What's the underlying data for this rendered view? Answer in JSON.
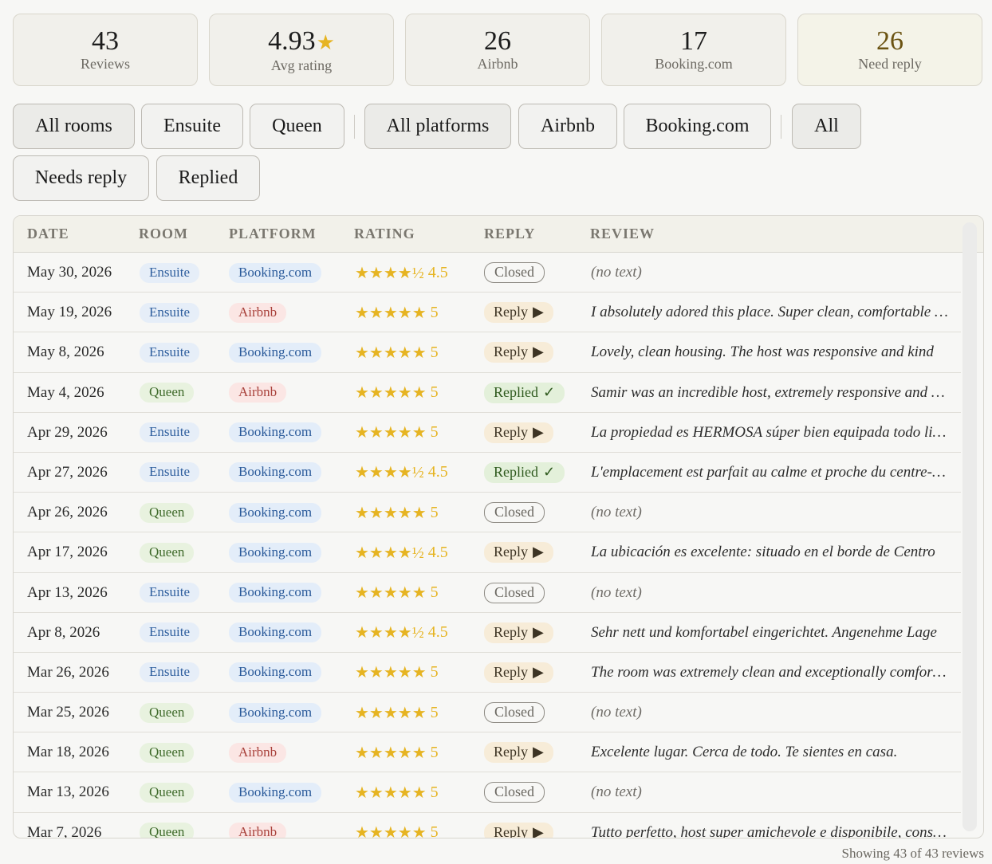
{
  "stats": [
    {
      "value": "43",
      "label": "Reviews"
    },
    {
      "value": "4.93",
      "label": "Avg rating",
      "star": "★"
    },
    {
      "value": "26",
      "label": "Airbnb"
    },
    {
      "value": "17",
      "label": "Booking.com"
    },
    {
      "value": "26",
      "label": "Need reply"
    }
  ],
  "filters": {
    "rooms": [
      "All rooms",
      "Ensuite",
      "Queen"
    ],
    "platforms": [
      "All platforms",
      "Airbnb",
      "Booking.com"
    ],
    "reply": [
      "All",
      "Needs reply",
      "Replied"
    ]
  },
  "table": {
    "headers": [
      "DATE",
      "ROOM",
      "PLATFORM",
      "RATING",
      "REPLY",
      "REVIEW"
    ],
    "rows": [
      {
        "date": "May 30, 2026",
        "room": "Ensuite",
        "platform": "Booking.com",
        "stars": "★★★★½",
        "rating": "4.5",
        "reply": "Closed",
        "review": "(no text)"
      },
      {
        "date": "May 19, 2026",
        "room": "Ensuite",
        "platform": "Airbnb",
        "stars": "★★★★★",
        "rating": "5",
        "reply": "Reply",
        "review": "I absolutely adored this place. Super clean, comfortable and cozy"
      },
      {
        "date": "May 8, 2026",
        "room": "Ensuite",
        "platform": "Booking.com",
        "stars": "★★★★★",
        "rating": "5",
        "reply": "Reply",
        "review": "Lovely, clean housing. The host was responsive and kind"
      },
      {
        "date": "May 4, 2026",
        "room": "Queen",
        "platform": "Airbnb",
        "stars": "★★★★★",
        "rating": "5",
        "reply": "Replied",
        "review": "Samir was an incredible host, extremely responsive and helpful"
      },
      {
        "date": "Apr 29, 2026",
        "room": "Ensuite",
        "platform": "Booking.com",
        "stars": "★★★★★",
        "rating": "5",
        "reply": "Reply",
        "review": "La propiedad es HERMOSA súper bien equipada todo limpio"
      },
      {
        "date": "Apr 27, 2026",
        "room": "Ensuite",
        "platform": "Booking.com",
        "stars": "★★★★½",
        "rating": "4.5",
        "reply": "Replied",
        "review": "L'emplacement est parfait au calme et proche du centre-ville"
      },
      {
        "date": "Apr 26, 2026",
        "room": "Queen",
        "platform": "Booking.com",
        "stars": "★★★★★",
        "rating": "5",
        "reply": "Closed",
        "review": "(no text)"
      },
      {
        "date": "Apr 17, 2026",
        "room": "Queen",
        "platform": "Booking.com",
        "stars": "★★★★½",
        "rating": "4.5",
        "reply": "Reply",
        "review": "La ubicación es excelente: situado en el borde de Centro"
      },
      {
        "date": "Apr 13, 2026",
        "room": "Ensuite",
        "platform": "Booking.com",
        "stars": "★★★★★",
        "rating": "5",
        "reply": "Closed",
        "review": "(no text)"
      },
      {
        "date": "Apr 8, 2026",
        "room": "Ensuite",
        "platform": "Booking.com",
        "stars": "★★★★½",
        "rating": "4.5",
        "reply": "Reply",
        "review": "Sehr nett und komfortabel eingerichtet. Angenehme Lage"
      },
      {
        "date": "Mar 26, 2026",
        "room": "Ensuite",
        "platform": "Booking.com",
        "stars": "★★★★★",
        "rating": "5",
        "reply": "Reply",
        "review": "The room was extremely clean and exceptionally comfortable"
      },
      {
        "date": "Mar 25, 2026",
        "room": "Queen",
        "platform": "Booking.com",
        "stars": "★★★★★",
        "rating": "5",
        "reply": "Closed",
        "review": "(no text)"
      },
      {
        "date": "Mar 18, 2026",
        "room": "Queen",
        "platform": "Airbnb",
        "stars": "★★★★★",
        "rating": "5",
        "reply": "Reply",
        "review": "Excelente lugar. Cerca de todo. Te sientes en casa."
      },
      {
        "date": "Mar 13, 2026",
        "room": "Queen",
        "platform": "Booking.com",
        "stars": "★★★★★",
        "rating": "5",
        "reply": "Closed",
        "review": "(no text)"
      },
      {
        "date": "Mar 7, 2026",
        "room": "Queen",
        "platform": "Airbnb",
        "stars": "★★★★★",
        "rating": "5",
        "reply": "Reply",
        "review": "Tutto perfetto, host super amichevole e disponibile, consigliato"
      }
    ]
  },
  "reply_icons": {
    "Reply": "▶",
    "Replied": "✓",
    "Closed": ""
  },
  "footer": "Showing 43 of 43 reviews"
}
